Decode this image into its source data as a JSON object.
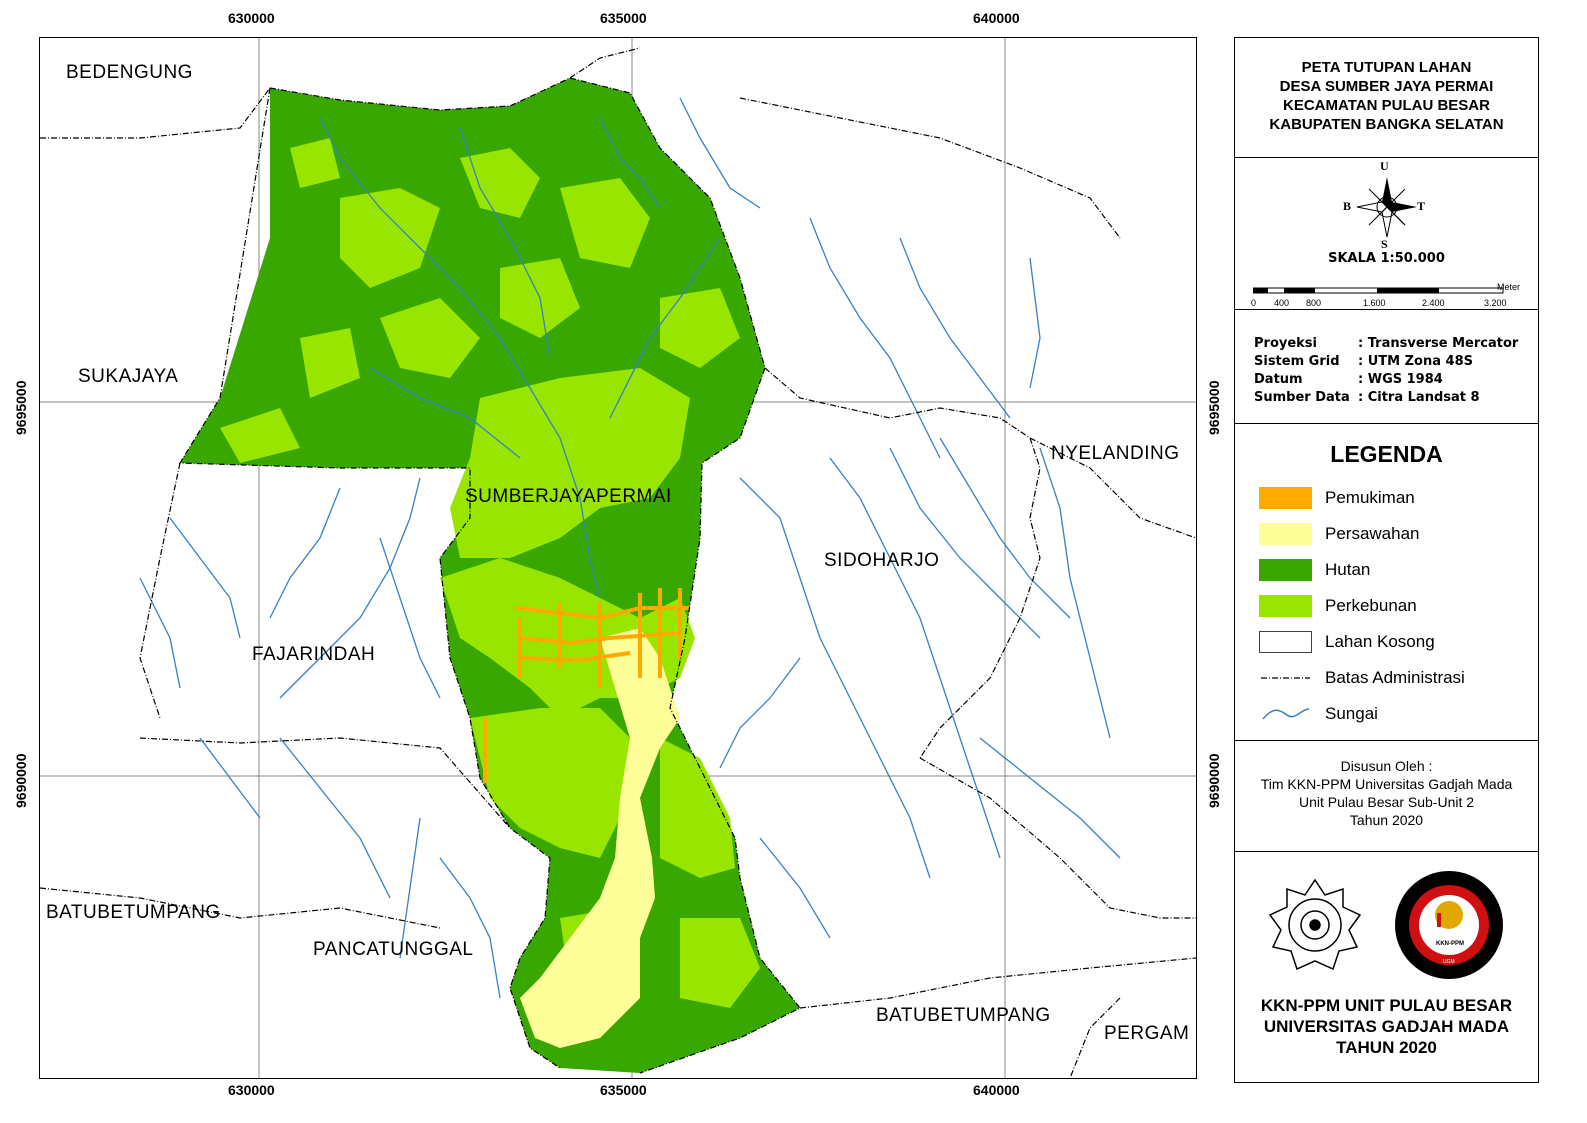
{
  "map": {
    "coords_x": [
      "630000",
      "635000",
      "640000"
    ],
    "coords_y": [
      "9695000",
      "9690000"
    ],
    "places": {
      "bedengung": "BEDENGUNG",
      "sukajaya": "SUKAJAYA",
      "nyelanding": "NYELANDING",
      "sumberjayapermai": "SUMBERJAYAPERMAI",
      "sidoharjo": "SIDOHARJO",
      "fajarindah": "FAJARINDAH",
      "batubetumpang_w": "BATUBETUMPANG",
      "pancatunggal": "PANCATUNGGAL",
      "batubetumpang_s": "BATUBETUMPANG",
      "pergam": "PERGAM"
    }
  },
  "panel": {
    "title": [
      "PETA TUTUPAN LAHAN",
      "DESA SUMBER JAYA PERMAI",
      "KECAMATAN PULAU BESAR",
      "KABUPATEN BANGKA SELATAN"
    ],
    "compass": {
      "n": "U",
      "s": "S",
      "w": "B",
      "e": "T"
    },
    "scale_text": "SKALA 1:50.000",
    "scalebar_unit": "Meter",
    "scalebar_ticks": [
      "0",
      "400",
      "800",
      "1.600",
      "2.400",
      "3.200"
    ],
    "info": [
      {
        "key": "Proyeksi",
        "value": ": Transverse Mercator"
      },
      {
        "key": "Sistem Grid",
        "value": ": UTM Zona 48S"
      },
      {
        "key": "Datum",
        "value": ": WGS 1984"
      },
      {
        "key": "Sumber Data",
        "value": ": Citra Landsat 8"
      }
    ],
    "legend_title": "LEGENDA",
    "legend": [
      {
        "label": "Pemukiman",
        "color": "#ffaa00"
      },
      {
        "label": "Persawahan",
        "color": "#ffff99"
      },
      {
        "label": "Hutan",
        "color": "#38a800"
      },
      {
        "label": "Perkebunan",
        "color": "#98e600"
      },
      {
        "label": "Lahan Kosong",
        "color": "#ffffff"
      },
      {
        "label": "Batas Administrasi",
        "color": "#000000"
      },
      {
        "label": "Sungai",
        "color": "#3a7fc4"
      }
    ],
    "credit": [
      "Disusun Oleh :",
      "Tim KKN-PPM Universitas Gadjah Mada",
      "Unit Pulau Besar Sub-Unit 2",
      "Tahun 2020"
    ],
    "org": [
      "KKN-PPM UNIT PULAU BESAR",
      "UNIVERSITAS GADJAH MADA",
      "TAHUN 2020"
    ],
    "logo_text": {
      "ugm": "UNIVERSITAS GADJAH MADA",
      "kkn": "KULIAH KERJA NYATA PEMBELAJARAN PEMBERDAYAAN MASYARAKAT",
      "kkn_center": "KKN-PPM",
      "kkn_sub": "UGM"
    }
  }
}
